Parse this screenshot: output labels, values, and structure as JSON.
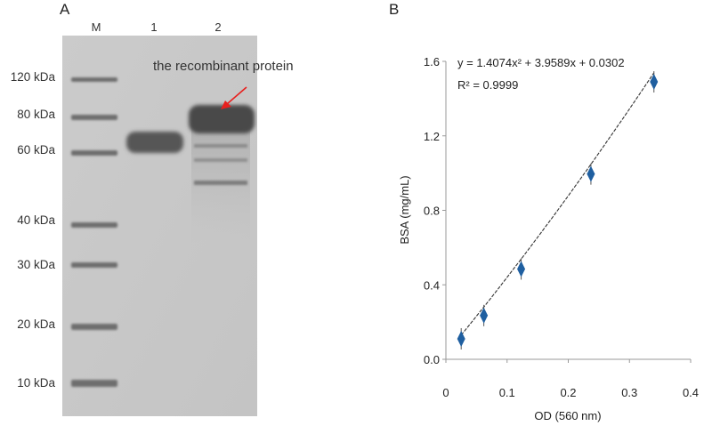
{
  "panel_a": {
    "letter": "A",
    "lanes": [
      "M",
      "1",
      "2"
    ],
    "marker_labels": [
      "120 kDa",
      "80 kDa",
      "60 kDa",
      "40 kDa",
      "30 kDa",
      "20 kDa",
      "10 kDa"
    ],
    "annotation": "the recombinant protein",
    "colors": {
      "gel_background": "#c8c8c8",
      "band": "#555555",
      "arrow": "#e8201e"
    }
  },
  "panel_b": {
    "letter": "B",
    "chart_data": {
      "type": "scatter",
      "xlabel": "OD (560 nm)",
      "ylabel": "BSA (mg/mL)",
      "x_ticks": [
        "0",
        "0.1",
        "0.2",
        "0.3",
        "0.4"
      ],
      "y_ticks": [
        "0.0",
        "0.4",
        "0.8",
        "1.2",
        "1.6"
      ],
      "xlim": [
        0,
        0.4
      ],
      "ylim": [
        0,
        1.6
      ],
      "points": [
        {
          "x": 0.025,
          "y": 0.11
        },
        {
          "x": 0.062,
          "y": 0.235
        },
        {
          "x": 0.123,
          "y": 0.485
        },
        {
          "x": 0.237,
          "y": 0.995
        },
        {
          "x": 0.34,
          "y": 1.49
        }
      ],
      "fit": {
        "equation": "y = 1.4074x² + 3.9589x + 0.0302",
        "r_squared": "R² = 0.9999",
        "a": 1.4074,
        "b": 3.9589,
        "c": 0.0302
      },
      "marker": "diamond",
      "marker_color": "#1f5fa0",
      "grid": false
    }
  }
}
